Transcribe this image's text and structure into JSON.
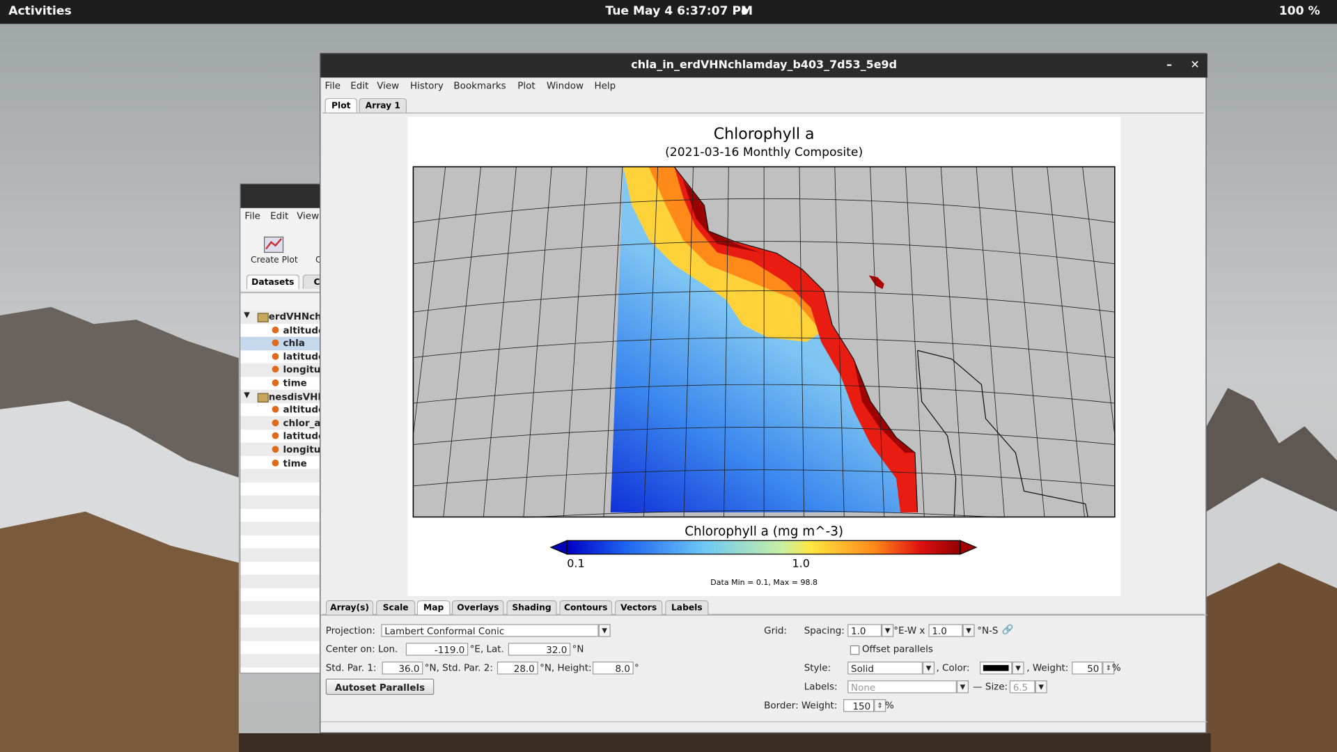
{
  "top_bar": {
    "activities": "Activities",
    "clock": "Tue May 4   6:37:07 PM",
    "battery": "100 %"
  },
  "back_window": {
    "menu": [
      "File",
      "Edit",
      "View"
    ],
    "toolbar": [
      "Create Plot",
      "C"
    ],
    "tabs": [
      "Datasets",
      "Ca"
    ],
    "tree": [
      {
        "label": "erdVHNchl",
        "children": [
          "altitude",
          "chla",
          "latitude",
          "longitu",
          "time"
        ]
      },
      {
        "label": "nesdisVHN",
        "children": [
          "altitude",
          "chlor_a",
          "latitude",
          "longitu",
          "time"
        ]
      }
    ]
  },
  "main_window": {
    "title": "chla_in_erdVHNchlamday_b403_7d53_5e9d",
    "menu": [
      "File",
      "Edit",
      "View",
      "History",
      "Bookmarks",
      "Plot",
      "Window",
      "Help"
    ],
    "tabs": [
      "Plot",
      "Array 1"
    ],
    "plot": {
      "title": "Chlorophyll a",
      "subtitle": "(2021-03-16 Monthly Composite)",
      "colorbar_label": "Chlorophyll a (mg m^-3)",
      "colorbar_ticks": [
        "0.1",
        "1.0"
      ],
      "data_range": "Data Min = 0.1, Max = 98.8"
    },
    "control_tabs": [
      "Array(s)",
      "Scale",
      "Map",
      "Overlays",
      "Shading",
      "Contours",
      "Vectors",
      "Labels"
    ],
    "controls": {
      "projection_label": "Projection:",
      "projection": "Lambert Conformal Conic",
      "center_label": "Center on: Lon.",
      "lon": "-119.0",
      "lon_unit": "°E, Lat.",
      "lat": "32.0",
      "lat_unit": "°N",
      "std1_label": "Std. Par. 1:",
      "std1": "36.0",
      "std1_unit": "°N, Std. Par. 2:",
      "std2": "28.0",
      "std2_unit": "°N, Height:",
      "height": "8.0",
      "height_unit": "°",
      "autoset": "Autoset Parallels",
      "grid_label": "Grid:",
      "spacing_label": "Spacing:",
      "spacing_ew": "1.0",
      "ew_unit": "°E-W x",
      "spacing_ns": "1.0",
      "ns_unit": "°N-S",
      "offset": "Offset parallels",
      "style_label": "Style:",
      "style": "Solid",
      "color_label": ", Color:",
      "weight_label": ", Weight:",
      "weight": "50",
      "weight_unit": "%",
      "labels_label": "Labels:",
      "labels": "None",
      "size_label": "— Size:",
      "size": "6.5",
      "border_label": "Border: Weight:",
      "border_weight": "150",
      "border_unit": "%"
    }
  }
}
